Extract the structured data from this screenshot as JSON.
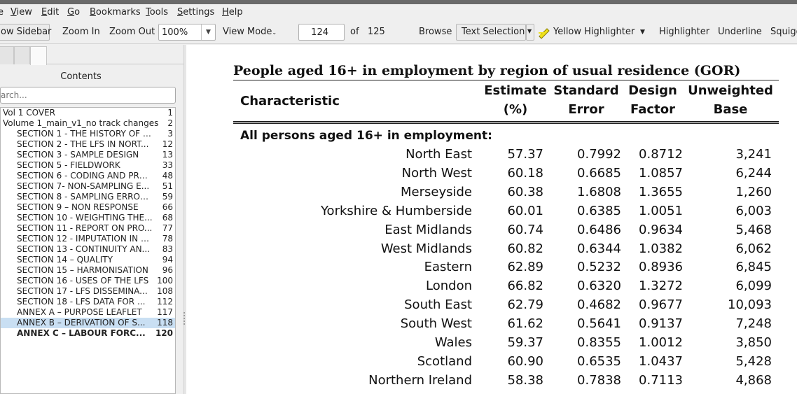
{
  "menu": [
    {
      "key": "view",
      "label": "View",
      "u": "V",
      "rest": "iew"
    },
    {
      "key": "edit",
      "label": "Edit",
      "u": "E",
      "rest": "dit"
    },
    {
      "key": "go",
      "label": "Go",
      "u": "G",
      "rest": "o"
    },
    {
      "key": "bookmarks",
      "label": "Bookmarks",
      "u": "B",
      "rest": "ookmarks"
    },
    {
      "key": "tools",
      "label": "Tools",
      "u": "T",
      "rest": "ools"
    },
    {
      "key": "settings",
      "label": "Settings",
      "u": "S",
      "rest": "ettings"
    },
    {
      "key": "help",
      "label": "Help",
      "u": "H",
      "rest": "elp"
    }
  ],
  "toolbar": {
    "show_sidebar": "ow Sidebar",
    "zoom_in": "Zoom In",
    "zoom_out": "Zoom Out",
    "zoom_value": "100%",
    "view_mode": "View Mode",
    "page_value": "124",
    "of_label": "of",
    "page_total": "125",
    "browse": "Browse",
    "text_selection": "Text Selection",
    "yellow_highlighter": "Yellow Highlighter",
    "highlighter": "Highlighter",
    "underline": "Underline",
    "squiggle": "Squigg"
  },
  "sidebar": {
    "title": "Contents",
    "search_placeholder": "arch...",
    "items": [
      {
        "label": "Vol 1  COVER",
        "page": "1",
        "indent": 0
      },
      {
        "label": "Volume 1_main_v1_no track changes",
        "page": "2",
        "indent": 0
      },
      {
        "label": "SECTION 1 - THE HISTORY OF T...",
        "page": "3",
        "indent": 1
      },
      {
        "label": "SECTION 2 - THE LFS IN NORT...",
        "page": "12",
        "indent": 1
      },
      {
        "label": "SECTION 3 - SAMPLE DESIGN",
        "page": "13",
        "indent": 1
      },
      {
        "label": "SECTION 5 - FIELDWORK",
        "page": "33",
        "indent": 1
      },
      {
        "label": "SECTION 6 - CODING AND PRO...",
        "page": "48",
        "indent": 1
      },
      {
        "label": "SECTION 7- NON-SAMPLING E...",
        "page": "51",
        "indent": 1
      },
      {
        "label": "SECTION 8 - SAMPLING ERROR...",
        "page": "59",
        "indent": 1
      },
      {
        "label": "SECTION 9 – NON RESPONSE",
        "page": "66",
        "indent": 1
      },
      {
        "label": "SECTION 10 - WEIGHTING THE...",
        "page": "68",
        "indent": 1
      },
      {
        "label": "SECTION 11 - REPORT ON PRO...",
        "page": "77",
        "indent": 1
      },
      {
        "label": "SECTION 12 - IMPUTATION IN T...",
        "page": "78",
        "indent": 1
      },
      {
        "label": "SECTION 13 - CONTINUITY AN...",
        "page": "83",
        "indent": 1
      },
      {
        "label": "SECTION 14 – QUALITY",
        "page": "94",
        "indent": 1
      },
      {
        "label": "SECTION 15 – HARMONISATION",
        "page": "96",
        "indent": 1
      },
      {
        "label": "SECTION 16 - USES OF THE LFS",
        "page": "100",
        "indent": 1
      },
      {
        "label": "SECTION 17 - LFS DISSEMINA...",
        "page": "108",
        "indent": 1
      },
      {
        "label": "SECTION 18 - LFS DATA FOR ...",
        "page": "112",
        "indent": 1
      },
      {
        "label": "ANNEX A – PURPOSE LEAFLET",
        "page": "117",
        "indent": 1
      },
      {
        "label": "ANNEX B – DERIVATION OF S...",
        "page": "118",
        "indent": 1,
        "selected": true
      },
      {
        "label": "ANNEX C – LABOUR FORC...",
        "page": "120",
        "indent": 1,
        "bold": true
      }
    ]
  },
  "document": {
    "title": "People aged 16+ in employment by region of usual residence (GOR)",
    "headers": {
      "characteristic": "Characteristic",
      "estimate_1": "Estimate",
      "estimate_2": "(%)",
      "se_1": "Standard",
      "se_2": "Error",
      "df_1": "Design",
      "df_2": "Factor",
      "base_1": "Unweighted",
      "base_2": "Base"
    },
    "group_label": "All persons aged 16+ in employment:",
    "rows": [
      {
        "region": "North East",
        "estimate": "57.37",
        "se": "0.7992",
        "df": "0.8712",
        "base": "3,241"
      },
      {
        "region": "North West",
        "estimate": "60.18",
        "se": "0.6685",
        "df": "1.0857",
        "base": "6,244"
      },
      {
        "region": "Merseyside",
        "estimate": "60.38",
        "se": "1.6808",
        "df": "1.3655",
        "base": "1,260"
      },
      {
        "region": "Yorkshire & Humberside",
        "estimate": "60.01",
        "se": "0.6385",
        "df": "1.0051",
        "base": "6,003"
      },
      {
        "region": "East Midlands",
        "estimate": "60.74",
        "se": "0.6486",
        "df": "0.9634",
        "base": "5,468"
      },
      {
        "region": "West Midlands",
        "estimate": "60.82",
        "se": "0.6344",
        "df": "1.0382",
        "base": "6,062"
      },
      {
        "region": "Eastern",
        "estimate": "62.89",
        "se": "0.5232",
        "df": "0.8936",
        "base": "6,845"
      },
      {
        "region": "London",
        "estimate": "66.82",
        "se": "0.6320",
        "df": "1.3272",
        "base": "6,099"
      },
      {
        "region": "South East",
        "estimate": "62.79",
        "se": "0.4682",
        "df": "0.9677",
        "base": "10,093"
      },
      {
        "region": "South West",
        "estimate": "61.62",
        "se": "0.5641",
        "df": "0.9137",
        "base": "7,248"
      },
      {
        "region": "Wales",
        "estimate": "59.37",
        "se": "0.8355",
        "df": "1.0012",
        "base": "3,850"
      },
      {
        "region": "Scotland",
        "estimate": "60.90",
        "se": "0.6535",
        "df": "1.0437",
        "base": "5,428"
      },
      {
        "region": "Northern Ireland",
        "estimate": "58.38",
        "se": "0.7838",
        "df": "0.7113",
        "base": "4,868"
      }
    ]
  },
  "colors": {
    "selection": "#c9dff3",
    "highlighter": "#f0e21a",
    "chrome": "#efefef"
  }
}
